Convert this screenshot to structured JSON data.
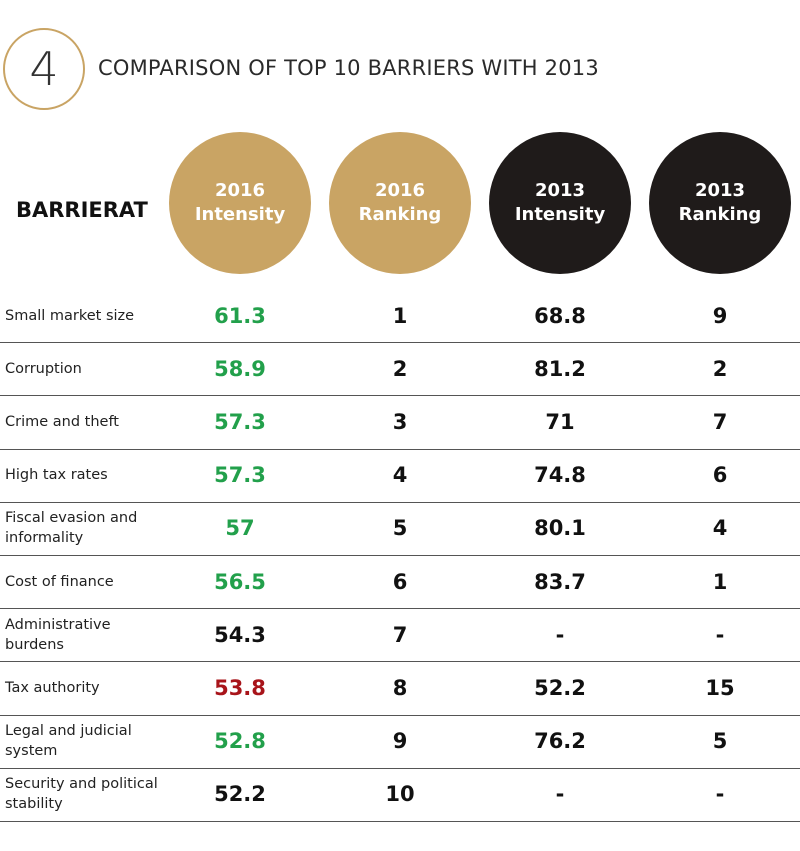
{
  "header": {
    "number": "4",
    "title": "COMPARISON OF TOP 10 BARRIERS WITH 2013"
  },
  "table": {
    "row_header": "BARRIERAT",
    "columns": [
      {
        "year": "2016",
        "label": "Intensity",
        "color": "#c9a464"
      },
      {
        "year": "2016",
        "label": "Ranking",
        "color": "#c9a464"
      },
      {
        "year": "2013",
        "label": "Intensity",
        "color": "#1f1b1a"
      },
      {
        "year": "2013",
        "label": "Ranking",
        "color": "#1f1b1a"
      }
    ],
    "rows": [
      {
        "barrier": "Small market size",
        "cells": [
          "61.3",
          "1",
          "68.8",
          "9"
        ],
        "color": "#22a04b"
      },
      {
        "barrier": "Corruption",
        "cells": [
          "58.9",
          "2",
          "81.2",
          "2"
        ],
        "color": "#22a04b"
      },
      {
        "barrier": "Crime and theft",
        "cells": [
          "57.3",
          "3",
          "71",
          "7"
        ],
        "color": "#22a04b"
      },
      {
        "barrier": "High tax rates",
        "cells": [
          "57.3",
          "4",
          "74.8",
          "6"
        ],
        "color": "#22a04b"
      },
      {
        "barrier": "Fiscal evasion and\ninformality",
        "cells": [
          "57",
          "5",
          "80.1",
          "4"
        ],
        "color": "#22a04b"
      },
      {
        "barrier": "Cost of finance",
        "cells": [
          "56.5",
          "6",
          "83.7",
          "1"
        ],
        "color": "#22a04b"
      },
      {
        "barrier": "Administrative\nburdens",
        "cells": [
          "54.3",
          "7",
          "-",
          "-"
        ],
        "color": "#111111"
      },
      {
        "barrier": "Tax authority",
        "cells": [
          "53.8",
          "8",
          "52.2",
          "15"
        ],
        "color": "#a8141a"
      },
      {
        "barrier": "Legal and judicial\nsystem",
        "cells": [
          "52.8",
          "9",
          "76.2",
          "5"
        ],
        "color": "#22a04b"
      },
      {
        "barrier": "Security and political\nstability",
        "cells": [
          "52.2",
          "10",
          "-",
          "-"
        ],
        "color": "#111111"
      }
    ]
  }
}
